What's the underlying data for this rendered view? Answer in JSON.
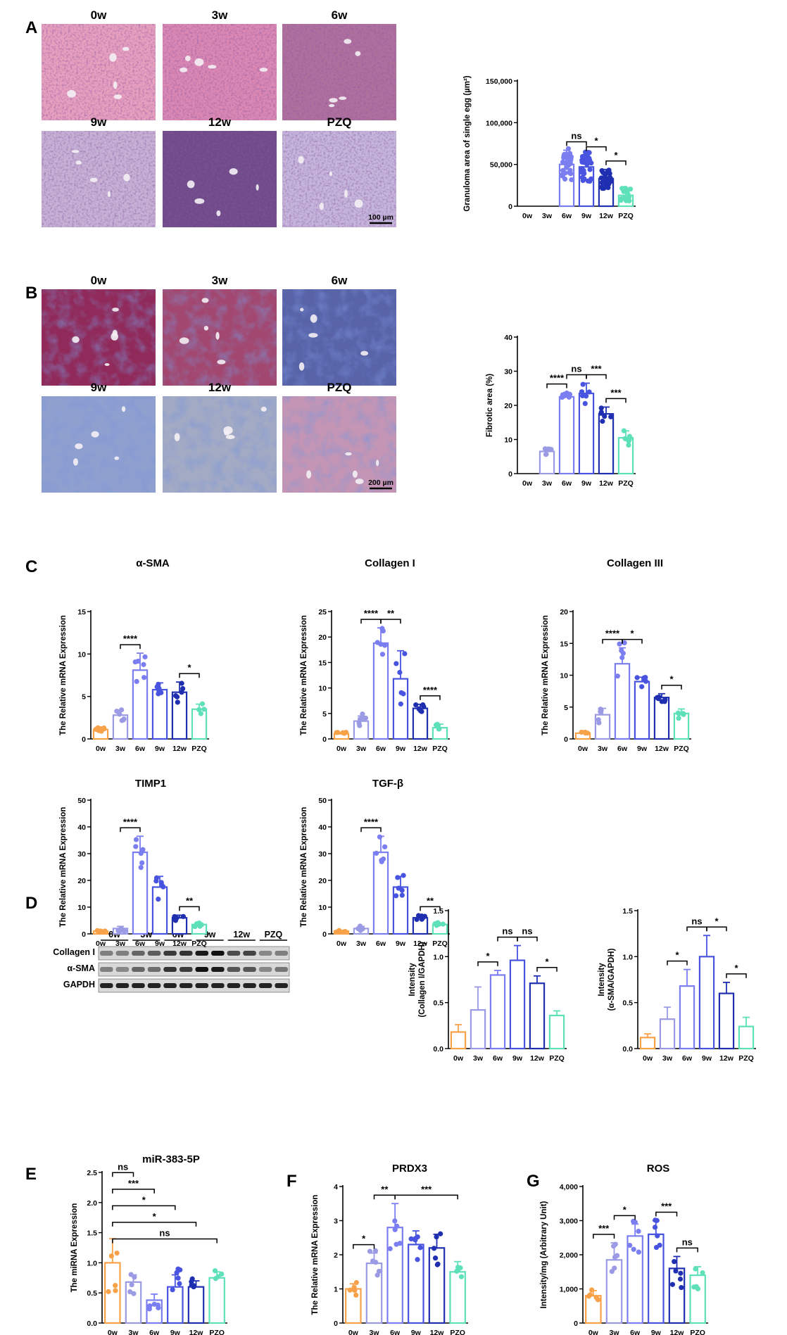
{
  "panels": {
    "a": "A",
    "b": "B",
    "c": "C",
    "d": "D",
    "e": "E",
    "f": "F",
    "g": "G"
  },
  "micrographs": {
    "a": {
      "labels": [
        "0w",
        "3w",
        "6w",
        "9w",
        "12w",
        "PZQ"
      ],
      "scale_bar": "100 µm",
      "colors": [
        "#e8a0bf",
        "#dc88b4",
        "#b0709e",
        "#c7b2d6",
        "#6f4b8a",
        "#c6b6dc"
      ]
    },
    "b": {
      "labels": [
        "0w",
        "3w",
        "6w",
        "9w",
        "12w",
        "PZQ"
      ],
      "scale_bar": "200 µm",
      "colors": [
        "#902a5a",
        "#a2476f",
        "#5863a8",
        "#8fa0cf",
        "#a2aac4",
        "#c495b4"
      ]
    }
  },
  "western_blot": {
    "groups": [
      "0w",
      "3w",
      "6w",
      "9w",
      "12w",
      "PZQ"
    ],
    "rows": [
      "Collagen I",
      "α-SMA",
      "GAPDH"
    ],
    "band_intensity": {
      "Collagen I": [
        0.35,
        0.35,
        0.5,
        0.55,
        0.75,
        0.8,
        0.95,
        1.0,
        0.65,
        0.7,
        0.3,
        0.35
      ],
      "α-SMA": [
        0.35,
        0.3,
        0.5,
        0.45,
        0.8,
        0.75,
        1.0,
        0.95,
        0.6,
        0.6,
        0.3,
        0.4
      ],
      "GAPDH": [
        0.9,
        0.9,
        0.9,
        0.9,
        0.9,
        0.9,
        0.9,
        0.9,
        0.9,
        0.9,
        0.9,
        0.9
      ]
    }
  },
  "chart_data": [
    {
      "id": "A-granuloma",
      "type": "bar",
      "categories": [
        "0w",
        "3w",
        "6w",
        "9w",
        "12w",
        "PZQ"
      ],
      "values": [
        0,
        0,
        50000,
        47000,
        33000,
        13000
      ],
      "errors": [
        0,
        0,
        17000,
        14000,
        11000,
        5000
      ],
      "n": [
        0,
        0,
        34,
        32,
        26,
        18
      ],
      "spread": [
        0,
        0,
        20000,
        18000,
        12000,
        9000
      ],
      "ylabel": "Granuloma area of single egg (µm²)",
      "ylim": [
        0,
        150000
      ],
      "yticks": [
        "0",
        "50,000",
        "100,000",
        "150,000"
      ],
      "comparisons": [
        {
          "from": "6w",
          "to": "9w",
          "label": "ns"
        },
        {
          "from": "9w",
          "to": "12w",
          "label": "*"
        },
        {
          "from": "12w",
          "to": "PZQ",
          "label": "*"
        }
      ]
    },
    {
      "id": "B-fibrotic",
      "type": "bar",
      "categories": [
        "0w",
        "3w",
        "6w",
        "9w",
        "12w",
        "PZQ"
      ],
      "values": [
        0,
        6.5,
        22.5,
        23.5,
        17.5,
        10.5
      ],
      "errors": [
        0,
        1.2,
        1.3,
        3.0,
        2.0,
        2.0
      ],
      "n": [
        0,
        6,
        6,
        6,
        6,
        6
      ],
      "spread": [
        0,
        1.5,
        1.2,
        3.0,
        2.5,
        2.5
      ],
      "ylabel": "Fibrotic area (%)",
      "ylim": [
        0,
        40
      ],
      "yticks": [
        "0",
        "10",
        "20",
        "30",
        "40"
      ],
      "comparisons": [
        {
          "from": "3w",
          "to": "6w",
          "label": "****"
        },
        {
          "from": "6w",
          "to": "9w",
          "label": "ns"
        },
        {
          "from": "9w",
          "to": "12w",
          "label": "***"
        },
        {
          "from": "12w",
          "to": "PZQ",
          "label": "***"
        }
      ]
    },
    {
      "id": "C-asma",
      "type": "bar",
      "title": "α-SMA",
      "categories": [
        "0w",
        "3w",
        "6w",
        "9w",
        "12w",
        "PZQ"
      ],
      "values": [
        1.1,
        2.8,
        8.1,
        5.8,
        5.5,
        3.5
      ],
      "errors": [
        0.3,
        0.6,
        2.0,
        0.8,
        1.2,
        0.6
      ],
      "n": [
        8,
        6,
        6,
        6,
        6,
        4
      ],
      "spread": [
        0.3,
        0.8,
        2.0,
        0.8,
        1.2,
        0.8
      ],
      "ylabel": "The Relative mRNA Expression",
      "ylim": [
        0,
        15
      ],
      "yticks": [
        "0",
        "5",
        "10",
        "15"
      ],
      "comparisons": [
        {
          "from": "3w",
          "to": "6w",
          "label": "****"
        },
        {
          "from": "12w",
          "to": "PZQ",
          "label": "*"
        }
      ]
    },
    {
      "id": "C-col1",
      "type": "bar",
      "title": "Collagen I",
      "categories": [
        "0w",
        "3w",
        "6w",
        "9w",
        "12w",
        "PZQ"
      ],
      "values": [
        1.0,
        3.5,
        18.8,
        11.8,
        6.0,
        2.2
      ],
      "errors": [
        0.3,
        1.0,
        3.0,
        5.5,
        0.8,
        0.7
      ],
      "n": [
        5,
        6,
        6,
        6,
        6,
        5
      ],
      "spread": [
        0.3,
        1.5,
        3.0,
        6.0,
        0.8,
        0.8
      ],
      "ylabel": "The Relative mRNA Expression",
      "ylim": [
        0,
        25
      ],
      "yticks": [
        "0",
        "5",
        "10",
        "15",
        "20",
        "25"
      ],
      "comparisons": [
        {
          "from": "3w",
          "to": "6w",
          "label": "****"
        },
        {
          "from": "6w",
          "to": "9w",
          "label": "**"
        },
        {
          "from": "12w",
          "to": "PZQ",
          "label": "****"
        }
      ]
    },
    {
      "id": "C-col3",
      "type": "bar",
      "title": "Collagen III",
      "categories": [
        "0w",
        "3w",
        "6w",
        "9w",
        "12w",
        "PZQ"
      ],
      "values": [
        0.9,
        3.8,
        11.8,
        9.0,
        6.5,
        4.0
      ],
      "errors": [
        0.2,
        1.0,
        2.5,
        0.7,
        0.6,
        0.7
      ],
      "n": [
        4,
        5,
        6,
        6,
        6,
        5
      ],
      "spread": [
        0.2,
        1.5,
        3.5,
        0.8,
        0.8,
        0.8
      ],
      "ylabel": "The Relative mRNA Expression",
      "ylim": [
        0,
        20
      ],
      "yticks": [
        "0",
        "5",
        "10",
        "15",
        "20"
      ],
      "comparisons": [
        {
          "from": "3w",
          "to": "6w",
          "label": "****"
        },
        {
          "from": "6w",
          "to": "9w",
          "label": "*"
        },
        {
          "from": "12w",
          "to": "PZQ",
          "label": "*"
        }
      ]
    },
    {
      "id": "C-timp1",
      "type": "bar",
      "title": "TIMP1",
      "categories": [
        "0w",
        "3w",
        "6w",
        "9w",
        "12w",
        "PZQ"
      ],
      "values": [
        1.0,
        2.0,
        30.5,
        17.5,
        6.0,
        3.5
      ],
      "errors": [
        0.3,
        0.8,
        6.0,
        4.0,
        1.0,
        0.6
      ],
      "n": [
        6,
        6,
        6,
        6,
        6,
        5
      ],
      "spread": [
        0.3,
        1.0,
        6.0,
        5.0,
        1.0,
        0.8
      ],
      "ylabel": "The Relative mRNA Expression",
      "ylim": [
        0,
        50
      ],
      "yticks": [
        "0",
        "10",
        "20",
        "30",
        "40",
        "50"
      ],
      "comparisons": [
        {
          "from": "3w",
          "to": "6w",
          "label": "****"
        },
        {
          "from": "12w",
          "to": "PZQ",
          "label": "**"
        }
      ]
    },
    {
      "id": "C-tgfb",
      "type": "bar",
      "title": "TGF-β",
      "categories": [
        "0w",
        "3w",
        "6w",
        "9w",
        "12w",
        "PZQ"
      ],
      "values": [
        1.0,
        2.0,
        30.5,
        17.5,
        6.0,
        3.5
      ],
      "errors": [
        0.3,
        0.8,
        6.0,
        4.0,
        1.0,
        0.6
      ],
      "n": [
        6,
        6,
        6,
        6,
        6,
        5
      ],
      "spread": [
        0.3,
        1.0,
        6.0,
        5.0,
        1.0,
        0.8
      ],
      "ylabel": "The Relative mRNA Expression",
      "ylim": [
        0,
        50
      ],
      "yticks": [
        "0",
        "10",
        "20",
        "30",
        "40",
        "50"
      ],
      "comparisons": [
        {
          "from": "3w",
          "to": "6w",
          "label": "****"
        },
        {
          "from": "12w",
          "to": "PZQ",
          "label": "**"
        }
      ]
    },
    {
      "id": "D-col1",
      "type": "bar",
      "categories": [
        "0w",
        "3w",
        "6w",
        "9w",
        "12w",
        "PZQ"
      ],
      "values": [
        0.18,
        0.42,
        0.8,
        0.96,
        0.71,
        0.36
      ],
      "errors": [
        0.08,
        0.25,
        0.05,
        0.16,
        0.08,
        0.05
      ],
      "n": [
        0,
        0,
        0,
        0,
        0,
        0
      ],
      "spread": [
        0,
        0,
        0,
        0,
        0,
        0
      ],
      "ylabel": "Intensity",
      "ylabel2": "(Collagen I/GAPDH)",
      "ylim": [
        0,
        1.5
      ],
      "yticks": [
        "0.0",
        "0.5",
        "1.0",
        "1.5"
      ],
      "comparisons": [
        {
          "from": "3w",
          "to": "6w",
          "label": "*"
        },
        {
          "from": "6w",
          "to": "9w",
          "label": "ns"
        },
        {
          "from": "9w",
          "to": "12w",
          "label": "ns"
        },
        {
          "from": "12w",
          "to": "PZQ",
          "label": "*"
        }
      ]
    },
    {
      "id": "D-asma",
      "type": "bar",
      "categories": [
        "0w",
        "3w",
        "6w",
        "9w",
        "12w",
        "PZQ"
      ],
      "values": [
        0.12,
        0.32,
        0.68,
        1.0,
        0.6,
        0.24
      ],
      "errors": [
        0.04,
        0.13,
        0.18,
        0.23,
        0.12,
        0.1
      ],
      "n": [
        0,
        0,
        0,
        0,
        0,
        0
      ],
      "spread": [
        0,
        0,
        0,
        0,
        0,
        0
      ],
      "ylabel": "Intensity",
      "ylabel2": "(α-SMA/GAPDH)",
      "ylim": [
        0,
        1.5
      ],
      "yticks": [
        "0.0",
        "0.5",
        "1.0",
        "1.5"
      ],
      "comparisons": [
        {
          "from": "3w",
          "to": "6w",
          "label": "*"
        },
        {
          "from": "6w",
          "to": "9w",
          "label": "ns"
        },
        {
          "from": "9w",
          "to": "12w",
          "label": "*"
        },
        {
          "from": "12w",
          "to": "PZQ",
          "label": "*"
        }
      ]
    },
    {
      "id": "E-mir",
      "type": "bar",
      "title": "miR-383-5P",
      "categories": [
        "0w",
        "3w",
        "6w",
        "9w",
        "12w",
        "PZQ"
      ],
      "values": [
        1.0,
        0.68,
        0.38,
        0.6,
        0.6,
        0.75
      ],
      "errors": [
        0.4,
        0.12,
        0.1,
        0.2,
        0.1,
        0.1
      ],
      "n": [
        5,
        5,
        5,
        6,
        5,
        4
      ],
      "spread": [
        0.5,
        0.25,
        0.15,
        0.3,
        0.15,
        0.15
      ],
      "ylabel": "The miRNA Expression",
      "ylim": [
        0,
        2.5
      ],
      "yticks": [
        "0.0",
        "0.5",
        "1.0",
        "1.5",
        "2.0",
        "2.5"
      ],
      "comparisons": [
        {
          "from": "0w",
          "to": "3w",
          "label": "ns"
        },
        {
          "from": "0w",
          "to": "6w",
          "label": "***"
        },
        {
          "from": "0w",
          "to": "9w",
          "label": "*"
        },
        {
          "from": "0w",
          "to": "12w",
          "label": "*"
        },
        {
          "from": "0w",
          "to": "PZQ",
          "label": "ns"
        }
      ]
    },
    {
      "id": "F-prdx3",
      "type": "bar",
      "title": "PRDX3",
      "categories": [
        "0w",
        "3w",
        "6w",
        "9w",
        "12w",
        "PZQ"
      ],
      "values": [
        1.0,
        1.75,
        2.8,
        2.3,
        2.2,
        1.5
      ],
      "errors": [
        0.15,
        0.3,
        0.7,
        0.4,
        0.4,
        0.3
      ],
      "n": [
        5,
        6,
        6,
        6,
        6,
        5
      ],
      "spread": [
        0.2,
        0.4,
        0.8,
        0.5,
        0.5,
        0.4
      ],
      "ylabel": "The Relative mRNA Expression",
      "ylim": [
        0,
        4
      ],
      "yticks": [
        "0",
        "1",
        "2",
        "3",
        "4"
      ],
      "comparisons": [
        {
          "from": "0w",
          "to": "3w",
          "label": "*"
        },
        {
          "from": "3w",
          "to": "6w",
          "label": "**"
        },
        {
          "from": "6w",
          "to": "PZQ",
          "label": "***"
        }
      ]
    },
    {
      "id": "G-ros",
      "type": "bar",
      "title": "ROS",
      "categories": [
        "0w",
        "3w",
        "6w",
        "9w",
        "12w",
        "PZQ"
      ],
      "values": [
        800,
        1850,
        2550,
        2600,
        1600,
        1400
      ],
      "errors": [
        150,
        500,
        350,
        400,
        350,
        250
      ],
      "n": [
        5,
        6,
        6,
        6,
        6,
        5
      ],
      "spread": [
        200,
        700,
        500,
        500,
        600,
        400
      ],
      "ylabel": "Intensity/mg (Arbitrary Unit)",
      "ylim": [
        0,
        4000
      ],
      "yticks": [
        "0",
        "1,000",
        "2,000",
        "3,000",
        "4,000"
      ],
      "comparisons": [
        {
          "from": "0w",
          "to": "3w",
          "label": "***"
        },
        {
          "from": "3w",
          "to": "6w",
          "label": "*"
        },
        {
          "from": "9w",
          "to": "12w",
          "label": "***"
        },
        {
          "from": "12w",
          "to": "PZQ",
          "label": "ns"
        }
      ]
    }
  ],
  "group_colors": [
    "#f7a248",
    "#9b9ae4",
    "#7b7ef0",
    "#4854e0",
    "#1f2fb0",
    "#5ee0b8"
  ]
}
